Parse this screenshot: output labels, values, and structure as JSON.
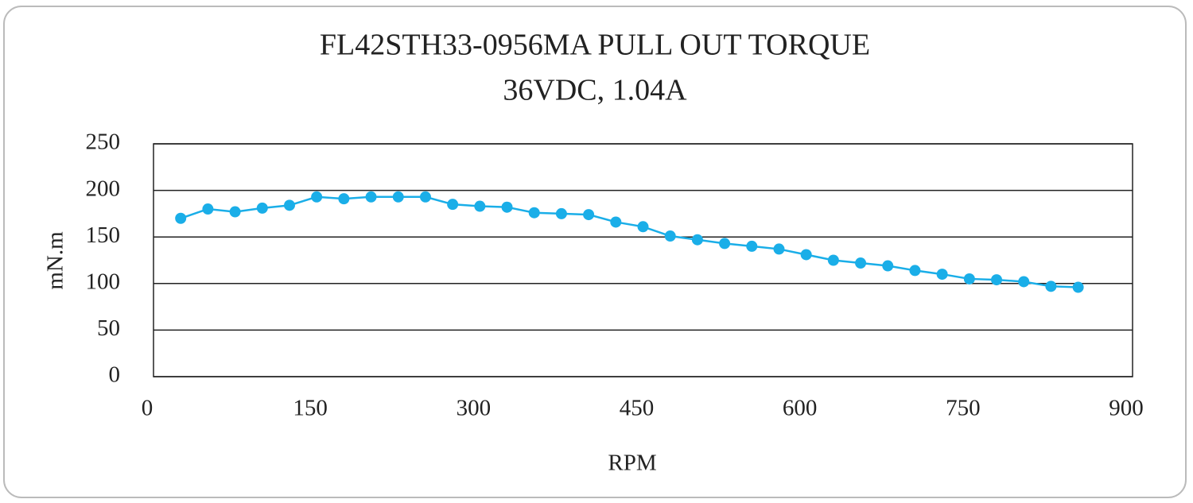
{
  "chart_data": {
    "type": "line",
    "title": "FL42STH33-0956MA PULL OUT TORQUE",
    "subtitle": "36VDC, 1.04A",
    "x_label": "RPM",
    "y_label": "mN.m",
    "x": [
      25,
      50,
      75,
      100,
      125,
      150,
      175,
      200,
      225,
      250,
      275,
      300,
      325,
      350,
      375,
      400,
      425,
      450,
      475,
      500,
      525,
      550,
      575,
      600,
      625,
      650,
      675,
      700,
      725,
      750,
      775,
      800,
      825,
      850
    ],
    "values": [
      170,
      180,
      177,
      181,
      184,
      193,
      191,
      193,
      193,
      193,
      185,
      183,
      182,
      176,
      175,
      174,
      166,
      161,
      151,
      147,
      143,
      140,
      137,
      131,
      125,
      122,
      119,
      114,
      110,
      105,
      104,
      102,
      97,
      96
    ],
    "color": "#1aaee8",
    "xlim": [
      0,
      900
    ],
    "xticks": [
      0,
      150,
      300,
      450,
      600,
      750,
      900
    ],
    "ylim": [
      0,
      250
    ],
    "yticks": [
      0,
      50,
      100,
      150,
      200,
      250
    ],
    "grid": true
  }
}
